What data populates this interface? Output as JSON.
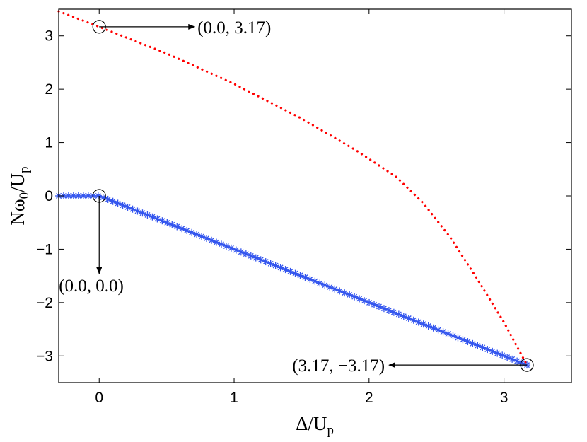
{
  "chart_data": {
    "type": "line",
    "title": "",
    "xlabel": "Δ/U",
    "xlabel_sub": "p",
    "ylabel": "Nω",
    "ylabel_sub": "0",
    "ylabel_tail": "/U",
    "ylabel_tail_sub": "p",
    "xlim": [
      -0.3,
      3.5
    ],
    "ylim": [
      -3.5,
      3.5
    ],
    "xticks": [
      0,
      1,
      2,
      3
    ],
    "xtick_labels": [
      "0",
      "1",
      "2",
      "3"
    ],
    "yticks": [
      -3,
      -2,
      -1,
      0,
      1,
      2,
      3
    ],
    "ytick_labels": [
      "−3",
      "−2",
      "−1",
      "0",
      "1",
      "2",
      "3"
    ],
    "grid": false,
    "series": [
      {
        "style": "dotted",
        "color": "#ff0000",
        "x": [
          -0.3,
          0.0,
          0.5,
          1.0,
          1.5,
          1.9,
          2.2,
          2.4,
          2.6,
          2.8,
          3.0,
          3.17
        ],
        "y": [
          3.46,
          3.17,
          2.67,
          2.1,
          1.45,
          0.86,
          0.36,
          -0.13,
          -0.77,
          -1.55,
          -2.37,
          -3.17
        ]
      },
      {
        "style": "asterisk-markers-line",
        "color": "#3355ee",
        "x": [
          -0.3,
          0.0,
          3.17
        ],
        "y": [
          0.0,
          0.0,
          -3.17
        ]
      }
    ],
    "annotations": [
      {
        "text": "(0.0,  3.17)",
        "x": 0.0,
        "y": 3.17,
        "arrow": "right"
      },
      {
        "text": "(0.0,  0.0)",
        "x": 0.0,
        "y": 0.0,
        "arrow": "down"
      },
      {
        "text": "(3.17,   −3.17)",
        "x": 3.17,
        "y": -3.17,
        "arrow": "left"
      }
    ]
  }
}
